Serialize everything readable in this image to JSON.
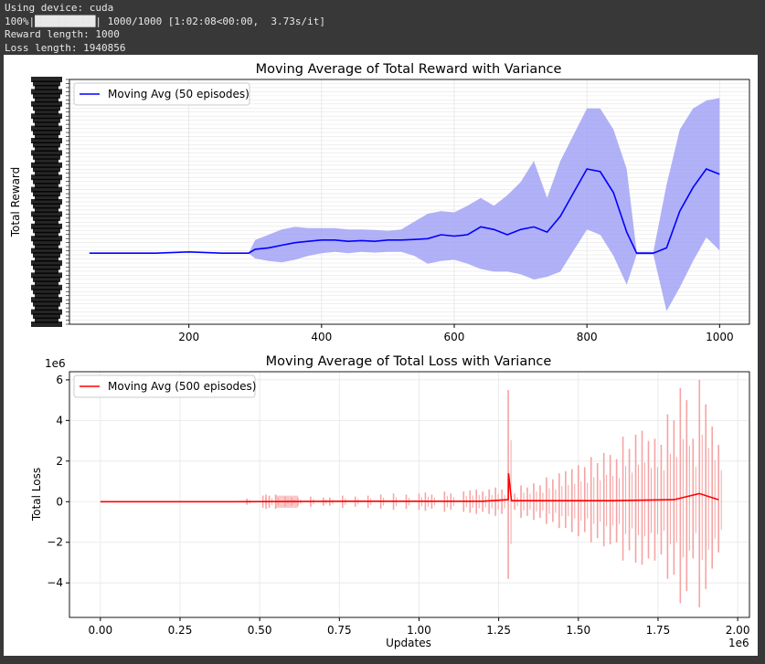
{
  "console": {
    "lines": [
      "Using device: cuda",
      "100%|██████████| 1000/1000 [1:02:08<00:00,  3.73s/it]",
      "Reward length: 1000",
      "Loss length: 1940856"
    ]
  },
  "colors": {
    "reward_line": "#0000ff",
    "reward_band": "#9d9df5",
    "loss_line": "#ff0000",
    "loss_band": "#f5a3a3",
    "grid": "#e6e6e6"
  },
  "chart_data": [
    {
      "type": "line",
      "title": "Moving Average of Total Reward with Variance",
      "xlabel": "",
      "ylabel": "Total Reward",
      "xlim": [
        20,
        1045
      ],
      "xticks": [
        200,
        400,
        600,
        800,
        1000
      ],
      "grid": true,
      "legend": "top-left",
      "series": [
        {
          "name": "Moving Avg (50 episodes)",
          "x": [
            50,
            100,
            150,
            200,
            250,
            290,
            300,
            320,
            340,
            360,
            380,
            400,
            420,
            440,
            460,
            480,
            500,
            520,
            540,
            560,
            580,
            600,
            620,
            640,
            660,
            680,
            700,
            720,
            740,
            760,
            780,
            800,
            820,
            840,
            860,
            875,
            900,
            920,
            940,
            960,
            980,
            1000
          ],
          "mean": [
            20,
            20,
            20,
            25,
            20,
            20,
            35,
            40,
            50,
            60,
            65,
            70,
            70,
            65,
            68,
            65,
            70,
            70,
            72,
            75,
            90,
            85,
            90,
            120,
            110,
            90,
            110,
            120,
            100,
            160,
            250,
            340,
            330,
            250,
            100,
            20,
            20,
            40,
            180,
            270,
            340,
            320
          ],
          "upper": [
            20,
            20,
            20,
            25,
            20,
            20,
            70,
            90,
            110,
            120,
            115,
            115,
            115,
            110,
            110,
            108,
            105,
            110,
            140,
            170,
            180,
            175,
            200,
            230,
            200,
            240,
            290,
            370,
            230,
            370,
            470,
            570,
            570,
            490,
            340,
            25,
            25,
            280,
            490,
            570,
            600,
            610
          ],
          "lower": [
            20,
            20,
            20,
            25,
            20,
            20,
            0,
            -10,
            -15,
            -5,
            10,
            20,
            25,
            20,
            25,
            22,
            25,
            25,
            10,
            -20,
            -10,
            -5,
            -20,
            -40,
            -50,
            -50,
            -60,
            -80,
            -70,
            -50,
            30,
            110,
            90,
            10,
            -100,
            15,
            15,
            -200,
            -110,
            -10,
            80,
            30
          ]
        }
      ]
    },
    {
      "type": "line",
      "title": "Moving Average of Total Loss with Variance",
      "xlabel": "Updates",
      "ylabel": "Total Loss",
      "x_scale_label": "1e6",
      "y_scale_label": "1e6",
      "xlim": [
        -0.097,
        2.037
      ],
      "ylim": [
        -5.7,
        6.4
      ],
      "xticks": [
        0.0,
        0.25,
        0.5,
        0.75,
        1.0,
        1.25,
        1.5,
        1.75,
        2.0
      ],
      "xtick_labels": [
        "0.00",
        "0.25",
        "0.50",
        "0.75",
        "1.00",
        "1.25",
        "1.50",
        "1.75",
        "2.00"
      ],
      "yticks": [
        -4,
        -2,
        0,
        2,
        4,
        6
      ],
      "ytick_labels": [
        "−4",
        "−2",
        "0",
        "2",
        "4",
        "6"
      ],
      "grid": true,
      "legend": "top-left",
      "series": [
        {
          "name": "Moving Avg (500 episodes)",
          "x": [
            0.0,
            0.4,
            0.8,
            1.2,
            1.28,
            1.281,
            1.29,
            1.4,
            1.6,
            1.8,
            1.88,
            1.94
          ],
          "mean": [
            0,
            0,
            0.02,
            0.02,
            0.1,
            1.4,
            0.05,
            0.05,
            0.05,
            0.1,
            0.4,
            0.1
          ]
        }
      ],
      "variance_spikes": {
        "x": [
          0.46,
          0.51,
          0.52,
          0.53,
          0.55,
          0.58,
          0.6,
          0.62,
          0.66,
          0.7,
          0.72,
          0.76,
          0.8,
          0.84,
          0.88,
          0.92,
          0.96,
          1.0,
          1.02,
          1.04,
          1.08,
          1.1,
          1.14,
          1.16,
          1.18,
          1.2,
          1.22,
          1.24,
          1.26,
          1.28,
          1.3,
          1.32,
          1.34,
          1.36,
          1.38,
          1.4,
          1.42,
          1.44,
          1.46,
          1.48,
          1.5,
          1.52,
          1.54,
          1.56,
          1.58,
          1.6,
          1.62,
          1.64,
          1.66,
          1.68,
          1.7,
          1.72,
          1.74,
          1.76,
          1.78,
          1.8,
          1.82,
          1.84,
          1.86,
          1.88,
          1.9,
          1.92,
          1.94
        ],
        "upper": [
          0.15,
          0.3,
          0.35,
          0.3,
          0.35,
          0.25,
          0.2,
          0.2,
          0.25,
          0.2,
          0.2,
          0.3,
          0.25,
          0.3,
          0.35,
          0.4,
          0.35,
          0.4,
          0.45,
          0.35,
          0.5,
          0.4,
          0.5,
          0.55,
          0.6,
          0.5,
          0.6,
          0.7,
          0.6,
          5.5,
          0.4,
          0.8,
          0.7,
          0.9,
          0.8,
          1.2,
          1.1,
          1.4,
          1.5,
          1.6,
          1.8,
          1.7,
          2.2,
          1.9,
          2.4,
          2.3,
          2.1,
          3.2,
          2.6,
          3.3,
          3.5,
          3.0,
          3.1,
          2.8,
          4.3,
          4.0,
          5.6,
          5.0,
          3.1,
          6.0,
          4.8,
          3.7,
          2.8
        ],
        "lower": [
          -0.15,
          -0.3,
          -0.35,
          -0.3,
          -0.35,
          -0.25,
          -0.2,
          -0.2,
          -0.25,
          -0.2,
          -0.2,
          -0.3,
          -0.25,
          -0.3,
          -0.35,
          -0.4,
          -0.35,
          -0.4,
          -0.45,
          -0.35,
          -0.5,
          -0.4,
          -0.5,
          -0.55,
          -0.6,
          -0.5,
          -0.6,
          -0.7,
          -0.6,
          -3.8,
          -0.4,
          -0.8,
          -0.7,
          -0.9,
          -0.8,
          -1.1,
          -1.0,
          -1.3,
          -1.3,
          -1.5,
          -1.7,
          -1.5,
          -2.0,
          -1.8,
          -2.2,
          -2.1,
          -2.0,
          -2.9,
          -2.4,
          -3.0,
          -3.1,
          -2.8,
          -2.9,
          -2.6,
          -3.8,
          -3.6,
          -5.0,
          -4.4,
          -2.8,
          -5.2,
          -4.3,
          -3.3,
          -2.5
        ]
      }
    }
  ]
}
